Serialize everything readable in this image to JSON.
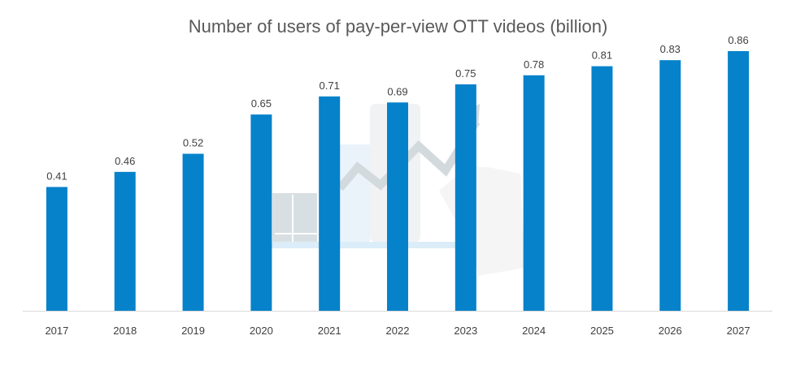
{
  "chart_data": {
    "type": "bar",
    "title": "Number of users of pay-per-view OTT videos (billion)",
    "categories": [
      "2017",
      "2018",
      "2019",
      "2020",
      "2021",
      "2022",
      "2023",
      "2024",
      "2025",
      "2026",
      "2027"
    ],
    "series": [
      {
        "values": [
          0.41,
          0.46,
          0.52,
          0.65,
          0.71,
          0.69,
          0.75,
          0.78,
          0.81,
          0.83,
          0.86
        ]
      }
    ],
    "data_labels": [
      "0.41",
      "0.46",
      "0.52",
      "0.65",
      "0.71",
      "0.69",
      "0.75",
      "0.78",
      "0.81",
      "0.83",
      "0.86"
    ],
    "ylim": [
      0,
      0.86
    ],
    "grid": false,
    "legend": "none",
    "bar_color": "#0582CA",
    "axis_color": "#D9D9D9"
  }
}
